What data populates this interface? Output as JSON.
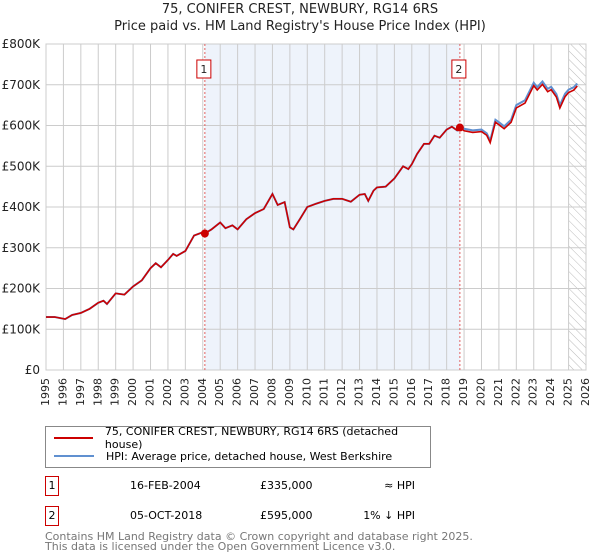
{
  "header": {
    "title": "75, CONIFER CREST, NEWBURY, RG14 6RS",
    "subtitle": "Price paid vs. HM Land Registry's House Price Index (HPI)"
  },
  "chart_data": {
    "type": "line",
    "title": "75, CONIFER CREST, NEWBURY, RG14 6RS",
    "subtitle": "Price paid vs. HM Land Registry's House Price Index (HPI)",
    "xlim": [
      1995,
      2026
    ],
    "ylim": [
      0,
      800000
    ],
    "x_ticks": [
      "1995",
      "1996",
      "1997",
      "1998",
      "1999",
      "2000",
      "2001",
      "2002",
      "2003",
      "2004",
      "2005",
      "2006",
      "2007",
      "2008",
      "2009",
      "2010",
      "2011",
      "2012",
      "2013",
      "2014",
      "2015",
      "2016",
      "2017",
      "2018",
      "2019",
      "2020",
      "2021",
      "2022",
      "2023",
      "2024",
      "2025",
      "2026"
    ],
    "y_ticks": [
      {
        "v": 0,
        "label": "£0"
      },
      {
        "v": 100000,
        "label": "£100K"
      },
      {
        "v": 200000,
        "label": "£200K"
      },
      {
        "v": 300000,
        "label": "£300K"
      },
      {
        "v": 400000,
        "label": "£400K"
      },
      {
        "v": 500000,
        "label": "£500K"
      },
      {
        "v": 600000,
        "label": "£600K"
      },
      {
        "v": 700000,
        "label": "£700K"
      },
      {
        "v": 800000,
        "label": "£800K"
      }
    ],
    "grid": true,
    "future_hatch_from": 2025.0,
    "shaded_between_sales": [
      2004.12,
      2018.76
    ],
    "colors": {
      "price": "#cc0000",
      "hpi": "#6090d0",
      "shade": "#eef3fb",
      "marker_line": "#e06060"
    },
    "hpi_points": [
      [
        1995,
        130
      ],
      [
        1995.5,
        130
      ],
      [
        1996.1,
        125
      ],
      [
        1996.5,
        135
      ],
      [
        1997,
        140
      ],
      [
        1997.5,
        150
      ],
      [
        1998,
        165
      ],
      [
        1998.3,
        170
      ],
      [
        1998.5,
        162
      ],
      [
        1999,
        188
      ],
      [
        1999.5,
        185
      ],
      [
        2000,
        205
      ],
      [
        2000.5,
        220
      ],
      [
        2001,
        250
      ],
      [
        2001.3,
        262
      ],
      [
        2001.6,
        252
      ],
      [
        2002,
        270
      ],
      [
        2002.3,
        285
      ],
      [
        2002.5,
        280
      ],
      [
        2003,
        292
      ],
      [
        2003.5,
        330
      ],
      [
        2004,
        338
      ],
      [
        2004.12,
        335
      ],
      [
        2004.5,
        345
      ],
      [
        2005,
        362
      ],
      [
        2005.3,
        348
      ],
      [
        2005.7,
        355
      ],
      [
        2006,
        345
      ],
      [
        2006.5,
        370
      ],
      [
        2007,
        385
      ],
      [
        2007.5,
        395
      ],
      [
        2008,
        432
      ],
      [
        2008.3,
        405
      ],
      [
        2008.7,
        412
      ],
      [
        2009,
        350
      ],
      [
        2009.2,
        345
      ],
      [
        2009.6,
        372
      ],
      [
        2010,
        400
      ],
      [
        2010.5,
        408
      ],
      [
        2011,
        415
      ],
      [
        2011.5,
        420
      ],
      [
        2012,
        420
      ],
      [
        2012.5,
        413
      ],
      [
        2013,
        430
      ],
      [
        2013.3,
        432
      ],
      [
        2013.5,
        415
      ],
      [
        2013.8,
        440
      ],
      [
        2014,
        448
      ],
      [
        2014.5,
        450
      ],
      [
        2015,
        470
      ],
      [
        2015.5,
        500
      ],
      [
        2015.8,
        493
      ],
      [
        2016,
        505
      ],
      [
        2016.3,
        530
      ],
      [
        2016.7,
        555
      ],
      [
        2017,
        555
      ],
      [
        2017.3,
        575
      ],
      [
        2017.6,
        570
      ],
      [
        2018,
        590
      ],
      [
        2018.3,
        597
      ],
      [
        2018.6,
        588
      ],
      [
        2018.76,
        600
      ],
      [
        2019,
        592
      ],
      [
        2019.5,
        588
      ],
      [
        2020,
        590
      ],
      [
        2020.3,
        581
      ],
      [
        2020.5,
        563
      ],
      [
        2020.8,
        614
      ],
      [
        2021,
        608
      ],
      [
        2021.3,
        598
      ],
      [
        2021.7,
        614
      ],
      [
        2022,
        650
      ],
      [
        2022.5,
        662
      ],
      [
        2023,
        705
      ],
      [
        2023.2,
        694
      ],
      [
        2023.5,
        708
      ],
      [
        2023.8,
        690
      ],
      [
        2024,
        695
      ],
      [
        2024.3,
        677
      ],
      [
        2024.5,
        650
      ],
      [
        2024.8,
        678
      ],
      [
        2025,
        688
      ],
      [
        2025.3,
        694
      ],
      [
        2025.5,
        703
      ]
    ],
    "price_points": [
      [
        1995,
        130
      ],
      [
        1995.5,
        130
      ],
      [
        1996.1,
        125
      ],
      [
        1996.5,
        135
      ],
      [
        1997,
        140
      ],
      [
        1997.5,
        150
      ],
      [
        1998,
        165
      ],
      [
        1998.3,
        170
      ],
      [
        1998.5,
        162
      ],
      [
        1999,
        188
      ],
      [
        1999.5,
        185
      ],
      [
        2000,
        205
      ],
      [
        2000.5,
        220
      ],
      [
        2001,
        250
      ],
      [
        2001.3,
        262
      ],
      [
        2001.6,
        252
      ],
      [
        2002,
        270
      ],
      [
        2002.3,
        285
      ],
      [
        2002.5,
        280
      ],
      [
        2003,
        292
      ],
      [
        2003.5,
        330
      ],
      [
        2004,
        338
      ],
      [
        2004.12,
        335
      ],
      [
        2004.5,
        345
      ],
      [
        2005,
        362
      ],
      [
        2005.3,
        348
      ],
      [
        2005.7,
        355
      ],
      [
        2006,
        345
      ],
      [
        2006.5,
        370
      ],
      [
        2007,
        385
      ],
      [
        2007.5,
        395
      ],
      [
        2008,
        432
      ],
      [
        2008.3,
        405
      ],
      [
        2008.7,
        412
      ],
      [
        2009,
        350
      ],
      [
        2009.2,
        345
      ],
      [
        2009.6,
        372
      ],
      [
        2010,
        400
      ],
      [
        2010.5,
        408
      ],
      [
        2011,
        415
      ],
      [
        2011.5,
        420
      ],
      [
        2012,
        420
      ],
      [
        2012.5,
        413
      ],
      [
        2013,
        430
      ],
      [
        2013.3,
        432
      ],
      [
        2013.5,
        415
      ],
      [
        2013.8,
        440
      ],
      [
        2014,
        448
      ],
      [
        2014.5,
        450
      ],
      [
        2015,
        470
      ],
      [
        2015.5,
        500
      ],
      [
        2015.8,
        493
      ],
      [
        2016,
        505
      ],
      [
        2016.3,
        530
      ],
      [
        2016.7,
        555
      ],
      [
        2017,
        555
      ],
      [
        2017.3,
        575
      ],
      [
        2017.6,
        570
      ],
      [
        2018,
        590
      ],
      [
        2018.3,
        597
      ],
      [
        2018.6,
        588
      ],
      [
        2018.76,
        595
      ],
      [
        2019,
        587
      ],
      [
        2019.5,
        583
      ],
      [
        2020,
        585
      ],
      [
        2020.3,
        576
      ],
      [
        2020.5,
        558
      ],
      [
        2020.8,
        608
      ],
      [
        2021,
        602
      ],
      [
        2021.3,
        592
      ],
      [
        2021.7,
        608
      ],
      [
        2022,
        643
      ],
      [
        2022.5,
        655
      ],
      [
        2023,
        698
      ],
      [
        2023.2,
        687
      ],
      [
        2023.5,
        701
      ],
      [
        2023.8,
        683
      ],
      [
        2024,
        688
      ],
      [
        2024.3,
        670
      ],
      [
        2024.5,
        643
      ],
      [
        2024.8,
        671
      ],
      [
        2025,
        681
      ],
      [
        2025.3,
        687
      ],
      [
        2025.5,
        697
      ]
    ],
    "sales": [
      {
        "id": "1",
        "x": 2004.12,
        "price": 335000
      },
      {
        "id": "2",
        "x": 2018.76,
        "price": 595000
      }
    ]
  },
  "legend": {
    "price_label": "75, CONIFER CREST, NEWBURY, RG14 6RS (detached house)",
    "hpi_label": "HPI: Average price, detached house, West Berkshire"
  },
  "transactions": [
    {
      "num": "1",
      "date": "16-FEB-2004",
      "price": "£335,000",
      "hpi": "≈ HPI"
    },
    {
      "num": "2",
      "date": "05-OCT-2018",
      "price": "£595,000",
      "hpi": "1% ↓ HPI"
    }
  ],
  "footer": {
    "line1": "Contains HM Land Registry data © Crown copyright and database right 2025.",
    "line2": "This data is licensed under the Open Government Licence v3.0."
  }
}
